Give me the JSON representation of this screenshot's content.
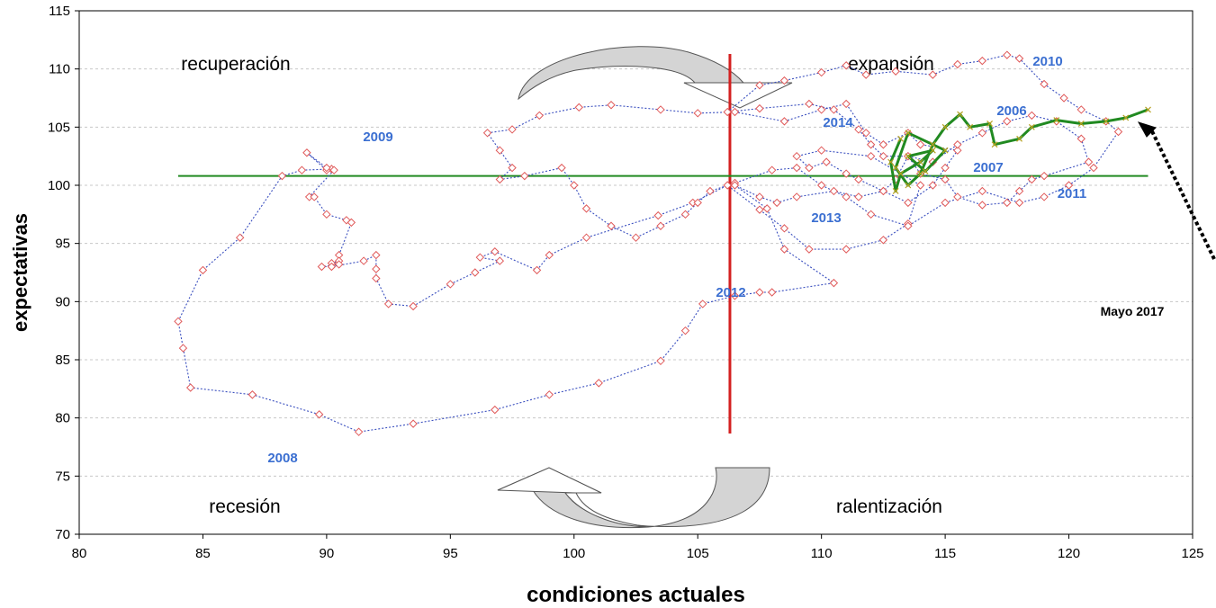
{
  "chart_data": {
    "type": "line",
    "title": "",
    "xlabel": "condiciones actuales",
    "ylabel": "expectativas",
    "xlim": [
      80,
      125
    ],
    "ylim": [
      70,
      115
    ],
    "x_ticks": [
      "80",
      "85",
      "90",
      "95",
      "100",
      "105",
      "110",
      "115",
      "120",
      "125"
    ],
    "y_ticks": [
      "70",
      "75",
      "80",
      "85",
      "90",
      "95",
      "100",
      "105",
      "110",
      "115"
    ],
    "grid": "horizontal dashed",
    "quadrants": [
      "recuperación",
      "expansión",
      "recesión",
      "ralentización"
    ],
    "year_labels": [
      "2009",
      "2014",
      "2006",
      "2010",
      "2007",
      "2011",
      "2013",
      "2012",
      "2008"
    ],
    "annotation": "Mayo 2017",
    "reference_lines": {
      "vertical_x": 106.3,
      "horizontal_y": 100.8
    },
    "series": [
      {
        "style": "red diamond markers, blue dotted line",
        "points": [
          [
            87,
            82
          ],
          [
            84.5,
            82.6
          ],
          [
            84.2,
            86
          ],
          [
            84,
            88.3
          ],
          [
            85,
            92.7
          ],
          [
            86.5,
            95.5
          ],
          [
            88.2,
            100.8
          ],
          [
            89,
            101.3
          ],
          [
            90.2,
            101.4
          ],
          [
            90,
            101.3
          ],
          [
            89.2,
            102.8
          ],
          [
            90,
            101.5
          ],
          [
            90.3,
            101.3
          ],
          [
            89.3,
            99
          ],
          [
            89.5,
            99
          ],
          [
            90,
            97.5
          ],
          [
            90.8,
            97
          ],
          [
            91,
            96.8
          ],
          [
            90.5,
            94
          ],
          [
            90.5,
            93.5
          ],
          [
            90.2,
            93.3
          ],
          [
            90.5,
            93.2
          ],
          [
            89.8,
            93
          ],
          [
            90.2,
            93
          ],
          [
            91.5,
            93.5
          ],
          [
            92,
            94
          ],
          [
            92,
            92.8
          ],
          [
            92,
            92
          ],
          [
            92.5,
            89.8
          ],
          [
            93.5,
            89.6
          ],
          [
            95,
            91.5
          ],
          [
            96,
            92.5
          ],
          [
            97,
            93.5
          ],
          [
            96.2,
            93.8
          ],
          [
            96.8,
            94.3
          ],
          [
            98.5,
            92.7
          ],
          [
            99,
            94
          ],
          [
            100.5,
            95.5
          ],
          [
            103.4,
            97.4
          ],
          [
            104.8,
            98.5
          ],
          [
            106.2,
            100
          ],
          [
            107.5,
            97.9
          ],
          [
            108.5,
            96.3
          ],
          [
            109.5,
            94.5
          ],
          [
            111,
            94.5
          ],
          [
            112.5,
            95.3
          ],
          [
            113.5,
            96.7
          ],
          [
            114,
            100
          ],
          [
            112,
            102.5
          ],
          [
            110,
            103
          ],
          [
            109,
            102.5
          ],
          [
            109.5,
            101.5
          ],
          [
            110.2,
            102
          ],
          [
            111,
            101
          ],
          [
            111.5,
            100.5
          ],
          [
            112.5,
            99.5
          ],
          [
            113.5,
            98.5
          ],
          [
            114.5,
            100
          ],
          [
            115,
            101.5
          ],
          [
            115.5,
            103
          ],
          [
            114,
            103.5
          ],
          [
            113.5,
            104.5
          ],
          [
            112.5,
            103.5
          ],
          [
            111.8,
            104.5
          ],
          [
            111,
            107
          ],
          [
            110,
            106.5
          ],
          [
            108.5,
            105.5
          ],
          [
            106.5,
            106.3
          ],
          [
            105,
            106.2
          ],
          [
            103.5,
            106.5
          ],
          [
            101.5,
            106.9
          ],
          [
            100.2,
            106.7
          ],
          [
            98.6,
            106
          ],
          [
            97.5,
            104.8
          ],
          [
            96.5,
            104.5
          ],
          [
            97,
            103
          ],
          [
            97.5,
            101.5
          ],
          [
            97,
            100.5
          ],
          [
            98,
            100.8
          ],
          [
            99.5,
            101.5
          ],
          [
            100,
            100
          ],
          [
            100.5,
            98
          ],
          [
            101.5,
            96.5
          ],
          [
            102.5,
            95.5
          ],
          [
            103.5,
            96.5
          ],
          [
            104.5,
            97.5
          ],
          [
            105,
            98.5
          ],
          [
            105.5,
            99.5
          ],
          [
            106.5,
            100.2
          ],
          [
            108,
            101.3
          ],
          [
            109,
            101.5
          ],
          [
            110,
            100
          ],
          [
            111,
            99
          ],
          [
            112,
            97.5
          ],
          [
            113.5,
            96.5
          ],
          [
            115,
            98.5
          ],
          [
            116.5,
            99.5
          ],
          [
            118,
            98.5
          ],
          [
            119,
            99
          ],
          [
            120,
            100
          ],
          [
            121,
            101.5
          ],
          [
            122,
            104.6
          ],
          [
            121.5,
            105.5
          ],
          [
            120.5,
            106.5
          ],
          [
            119.8,
            107.5
          ],
          [
            119,
            108.7
          ],
          [
            118,
            110.9
          ],
          [
            117.5,
            111.2
          ],
          [
            116.5,
            110.7
          ],
          [
            115.5,
            110.4
          ],
          [
            114.5,
            109.5
          ],
          [
            113,
            109.8
          ],
          [
            111.8,
            109.5
          ],
          [
            111,
            110.3
          ],
          [
            110,
            109.7
          ],
          [
            108.5,
            109
          ],
          [
            107.5,
            108.6
          ],
          [
            106.2,
            106.3
          ],
          [
            107.5,
            106.6
          ],
          [
            109.5,
            107
          ],
          [
            110.5,
            106.5
          ],
          [
            111.5,
            104.8
          ],
          [
            112,
            103.5
          ],
          [
            112.5,
            102.5
          ],
          [
            113.5,
            102.5
          ],
          [
            114.5,
            102
          ],
          [
            115.5,
            103.5
          ],
          [
            116.5,
            104.5
          ],
          [
            117.5,
            105.5
          ],
          [
            118.5,
            106
          ],
          [
            119.5,
            105.5
          ],
          [
            120.5,
            104
          ],
          [
            120.8,
            102
          ],
          [
            119,
            100.8
          ],
          [
            118.5,
            100.5
          ],
          [
            118,
            99.5
          ],
          [
            117.5,
            98.5
          ],
          [
            116.5,
            98.3
          ],
          [
            115.5,
            99
          ],
          [
            115,
            100.5
          ],
          [
            114,
            101
          ],
          [
            113.5,
            102.5
          ],
          [
            113,
            100.5
          ],
          [
            112.5,
            99.5
          ],
          [
            111.5,
            99
          ],
          [
            110.5,
            99.5
          ],
          [
            109,
            99
          ],
          [
            108.2,
            98.5
          ],
          [
            107.5,
            99
          ],
          [
            106.5,
            100
          ],
          [
            107.8,
            98
          ],
          [
            108.5,
            94.5
          ],
          [
            110.5,
            91.6
          ],
          [
            108,
            90.8
          ],
          [
            107.5,
            90.8
          ],
          [
            106.5,
            90.5
          ],
          [
            105.2,
            89.8
          ],
          [
            104.5,
            87.5
          ],
          [
            103.5,
            84.9
          ],
          [
            101,
            83
          ],
          [
            99,
            82
          ],
          [
            96.8,
            80.7
          ],
          [
            93.5,
            79.5
          ],
          [
            91.3,
            78.8
          ],
          [
            89.7,
            80.3
          ],
          [
            87,
            82
          ]
        ]
      },
      {
        "style": "green solid line, x markers",
        "points": [
          [
            113.2,
            104
          ],
          [
            112.8,
            102
          ],
          [
            113,
            99.5
          ],
          [
            113.2,
            101
          ],
          [
            114,
            102
          ],
          [
            114.5,
            103
          ],
          [
            113.5,
            102.5
          ],
          [
            114.2,
            101.2
          ],
          [
            115,
            103
          ],
          [
            113.5,
            104.5
          ],
          [
            113,
            101.5
          ],
          [
            113.5,
            100
          ],
          [
            114,
            101
          ],
          [
            114.5,
            103.5
          ],
          [
            115,
            105
          ],
          [
            115.6,
            106.1
          ],
          [
            116,
            105
          ],
          [
            116.8,
            105.3
          ],
          [
            117,
            103.5
          ],
          [
            118,
            104
          ],
          [
            118.5,
            105
          ],
          [
            119.5,
            105.6
          ],
          [
            120.5,
            105.3
          ],
          [
            121.5,
            105.5
          ],
          [
            122.3,
            105.8
          ],
          [
            123.2,
            106.5
          ]
        ]
      }
    ]
  }
}
